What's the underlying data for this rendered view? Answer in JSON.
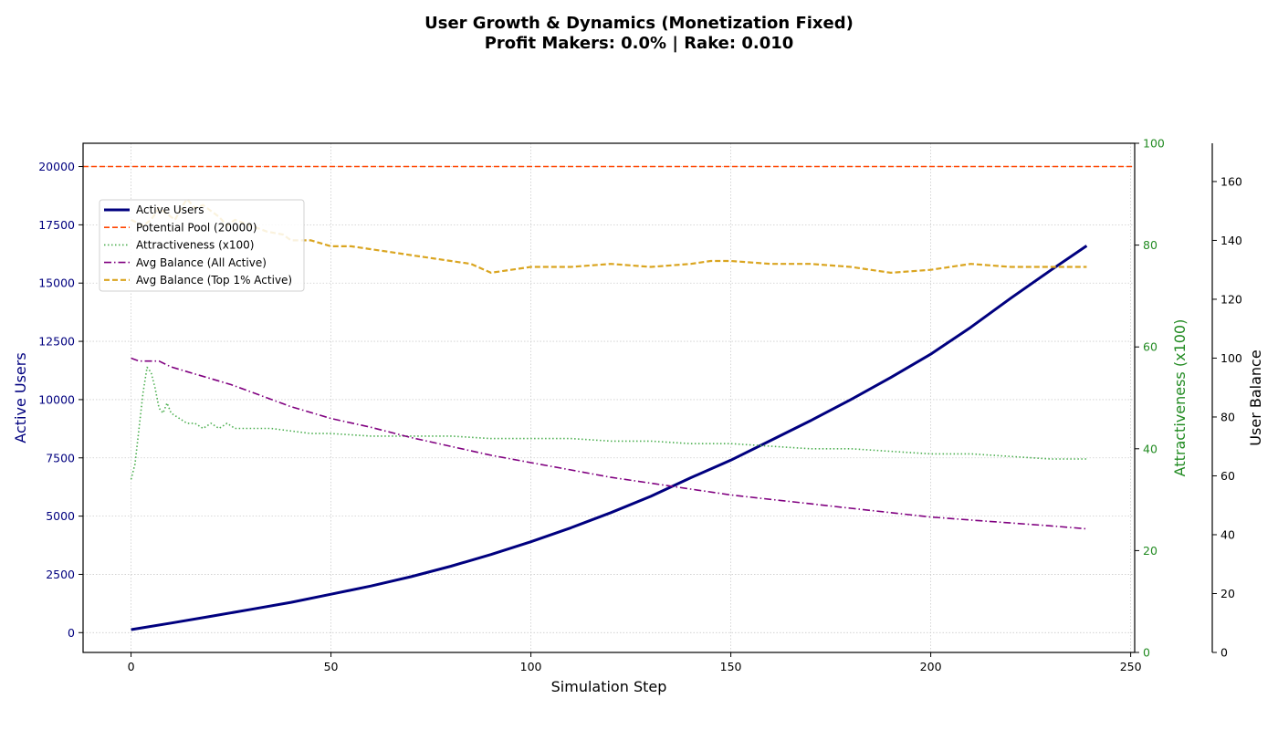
{
  "chart_data": {
    "type": "line",
    "title": "User Growth & Dynamics (Monetization Fixed)",
    "subtitle": "Profit Makers: 0.0% | Rake: 0.010",
    "xlabel": "Simulation Step",
    "xlim": [
      -12,
      251
    ],
    "x_ticks": [
      0,
      50,
      100,
      150,
      200,
      250
    ],
    "axes": {
      "left": {
        "label": "Active Users",
        "color": "#00007f",
        "ylim": [
          -850,
          21000
        ],
        "ticks": [
          0,
          2500,
          5000,
          7500,
          10000,
          12500,
          15000,
          17500,
          20000
        ]
      },
      "right": {
        "label": "Attractiveness (x100)",
        "color": "#228b22",
        "ylim": [
          0,
          100
        ],
        "ticks": [
          0,
          20,
          40,
          60,
          80,
          100
        ]
      },
      "far_right": {
        "label": "User Balance",
        "color": "#000000",
        "ylim": [
          0,
          173
        ],
        "ticks": [
          0,
          20,
          40,
          60,
          80,
          100,
          120,
          140,
          160
        ]
      }
    },
    "grid": true,
    "legend_position": "upper-left",
    "series": [
      {
        "name": "Active Users",
        "axis": "left",
        "color": "#00007f",
        "style": "solid",
        "width": 3,
        "x": [
          0,
          10,
          20,
          30,
          40,
          50,
          60,
          70,
          80,
          90,
          100,
          110,
          120,
          130,
          140,
          150,
          160,
          170,
          180,
          190,
          200,
          210,
          220,
          230,
          239
        ],
        "y": [
          130,
          410,
          700,
          1000,
          1300,
          1650,
          2000,
          2400,
          2850,
          3350,
          3900,
          4500,
          5150,
          5850,
          6650,
          7400,
          8250,
          9100,
          10000,
          10950,
          11950,
          13100,
          14350,
          15550,
          16600
        ]
      },
      {
        "name": "Potential Pool (20000)",
        "axis": "left",
        "color": "#ff4500",
        "style": "dashed",
        "width": 1.6,
        "x": [
          -12,
          251
        ],
        "y": [
          20000,
          20000
        ]
      },
      {
        "name": "Attractiveness (x100)",
        "axis": "right",
        "color": "#4caf50",
        "style": "dotted",
        "width": 1.6,
        "x": [
          0,
          1,
          2,
          3,
          4,
          5,
          6,
          7,
          8,
          9,
          10,
          12,
          14,
          16,
          18,
          20,
          22,
          24,
          26,
          28,
          30,
          35,
          40,
          45,
          50,
          60,
          70,
          80,
          90,
          100,
          110,
          120,
          130,
          140,
          150,
          160,
          170,
          180,
          190,
          200,
          210,
          220,
          230,
          239
        ],
        "y": [
          34,
          37,
          44,
          51,
          56,
          55,
          52,
          48,
          47,
          49,
          47,
          46,
          45,
          45,
          44,
          45,
          44,
          45,
          44,
          44,
          44,
          44,
          43.5,
          43,
          43,
          42.5,
          42.5,
          42.5,
          42,
          42,
          42,
          41.5,
          41.5,
          41,
          41,
          40.5,
          40,
          40,
          39.5,
          39,
          39,
          38.5,
          38,
          38
        ]
      },
      {
        "name": "Avg Balance (All Active)",
        "axis": "far_right",
        "color": "#800080",
        "style": "dashdot",
        "width": 1.6,
        "x": [
          0,
          2,
          4,
          6,
          7,
          10,
          15,
          20,
          25,
          30,
          35,
          40,
          45,
          50,
          60,
          70,
          80,
          90,
          100,
          110,
          120,
          130,
          140,
          150,
          160,
          170,
          180,
          190,
          200,
          210,
          220,
          230,
          239
        ],
        "y": [
          100,
          99,
          99,
          99,
          99,
          97,
          95,
          93,
          91,
          88.5,
          86,
          83.5,
          81.5,
          79.5,
          76.5,
          73,
          70,
          67,
          64.5,
          62,
          59.5,
          57.5,
          55.5,
          53.5,
          52,
          50.5,
          49,
          47.5,
          46,
          45,
          44,
          43,
          42
        ]
      },
      {
        "name": "Avg Balance (Top 1% Active)",
        "axis": "far_right",
        "color": "#daa520",
        "style": "dashed",
        "width": 2.2,
        "x": [
          0,
          3,
          5,
          7,
          9,
          11,
          13,
          14,
          16,
          18,
          20,
          22,
          24,
          26,
          28,
          30,
          34,
          38,
          40,
          45,
          50,
          55,
          60,
          65,
          70,
          75,
          80,
          85,
          90,
          95,
          100,
          110,
          120,
          130,
          140,
          145,
          150,
          160,
          170,
          180,
          190,
          200,
          210,
          220,
          230,
          239
        ],
        "y": [
          147,
          145,
          147,
          151,
          149,
          147,
          152,
          154,
          151,
          152,
          150,
          148,
          145,
          147,
          146,
          145,
          143,
          142,
          140,
          140,
          138,
          138,
          137,
          136,
          135,
          134,
          133,
          132,
          129,
          130,
          131,
          131,
          132,
          131,
          132,
          133,
          133,
          132,
          132,
          131,
          129,
          130,
          132,
          131,
          131,
          131
        ]
      }
    ]
  }
}
